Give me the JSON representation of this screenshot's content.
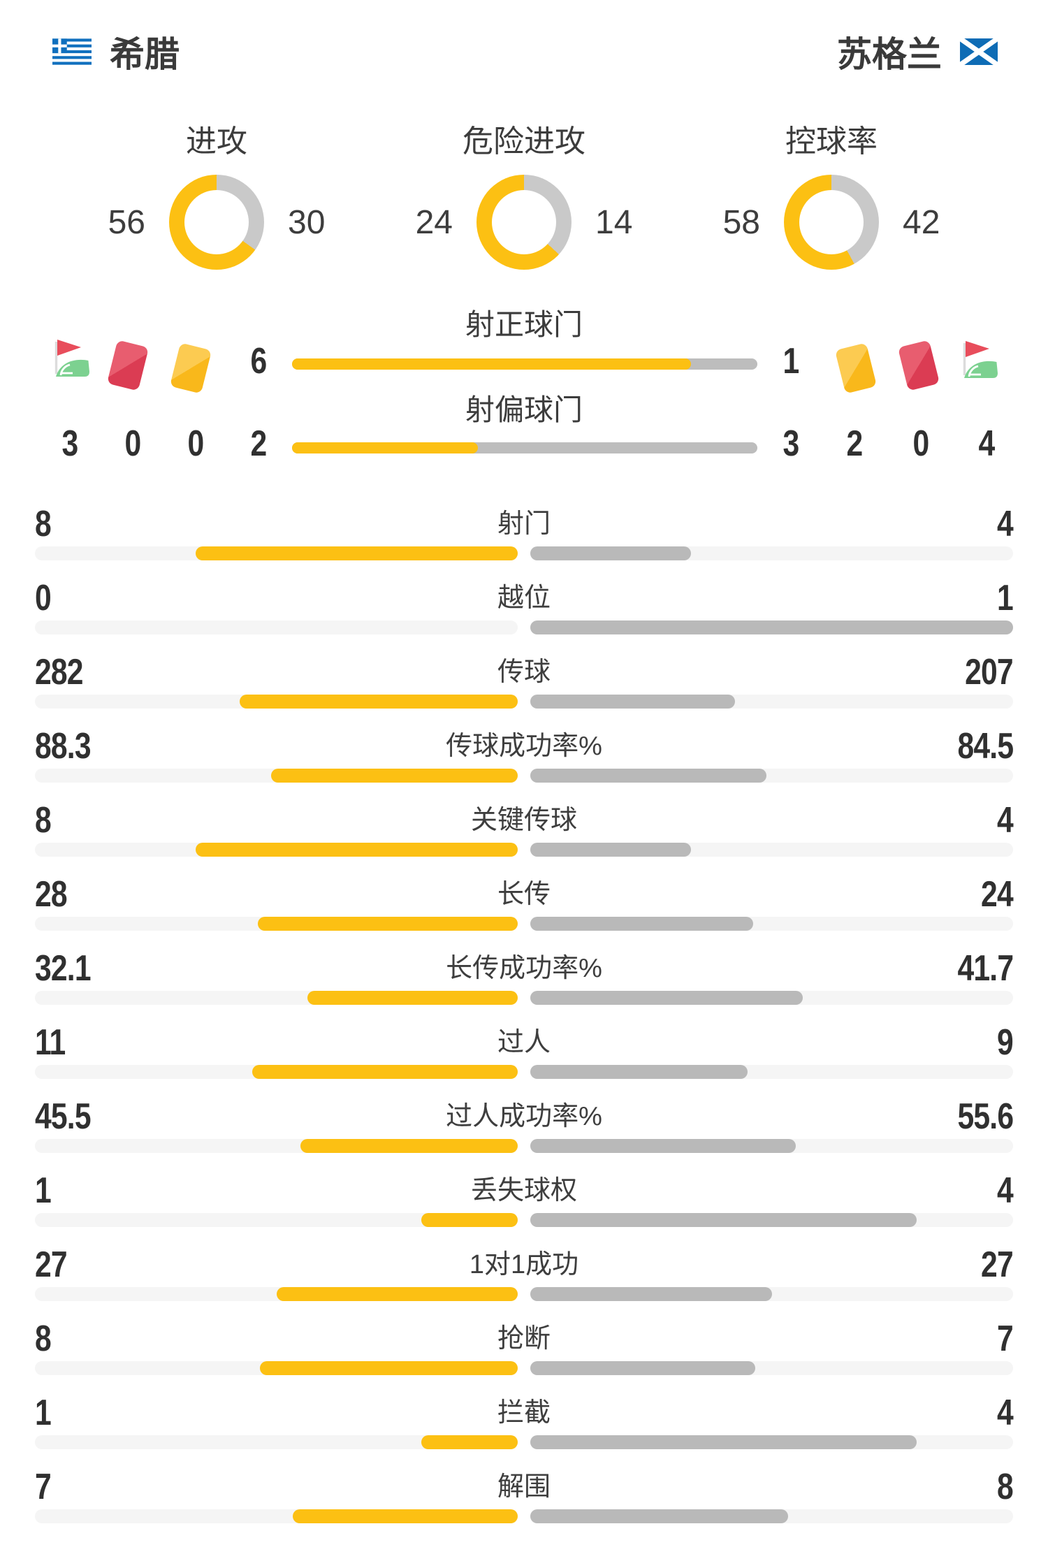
{
  "header": {
    "home_team": "希腊",
    "away_team": "苏格兰",
    "home_flag_icon": "greece-flag-icon",
    "away_flag_icon": "scotland-flag-icon"
  },
  "chart_data": {
    "type": "match-stats",
    "legend": {
      "home_color_meaning": "left team (希腊)",
      "away_color_meaning": "right team (苏格兰)"
    },
    "donuts": [
      {
        "label": "进攻",
        "home": 56,
        "away": 30
      },
      {
        "label": "危险进攻",
        "home": 24,
        "away": 14
      },
      {
        "label": "控球率",
        "home": 58,
        "away": 42
      }
    ],
    "shot_bars": [
      {
        "label": "射正球门",
        "home": 6,
        "away": 1
      },
      {
        "label": "射偏球门",
        "home": 2,
        "away": 3
      }
    ],
    "cards_corners": {
      "home": {
        "corners": 3,
        "red_cards": 0,
        "yellow_cards": 0
      },
      "away": {
        "yellow_cards": 2,
        "red_cards": 0,
        "corners": 4
      }
    },
    "stats": [
      {
        "label": "射门",
        "home": "8",
        "away": "4"
      },
      {
        "label": "越位",
        "home": "0",
        "away": "1"
      },
      {
        "label": "传球",
        "home": "282",
        "away": "207"
      },
      {
        "label": "传球成功率%",
        "home": "88.3",
        "away": "84.5"
      },
      {
        "label": "关键传球",
        "home": "8",
        "away": "4"
      },
      {
        "label": "长传",
        "home": "28",
        "away": "24"
      },
      {
        "label": "长传成功率%",
        "home": "32.1",
        "away": "41.7"
      },
      {
        "label": "过人",
        "home": "11",
        "away": "9"
      },
      {
        "label": "过人成功率%",
        "home": "45.5",
        "away": "55.6"
      },
      {
        "label": "丢失球权",
        "home": "1",
        "away": "4"
      },
      {
        "label": "1对1成功",
        "home": "27",
        "away": "27"
      },
      {
        "label": "抢断",
        "home": "8",
        "away": "7"
      },
      {
        "label": "拦截",
        "home": "1",
        "away": "4"
      },
      {
        "label": "解围",
        "home": "7",
        "away": "8"
      }
    ]
  },
  "colors": {
    "home_accent": "#fcc013",
    "away_bar": "#b9b9b9",
    "donut_rest": "#c9c9c9",
    "bar_track": "#f5f5f5",
    "text": "#383838",
    "greece_blue": "#1070be",
    "scotland_blue": "#0e6cb5",
    "corner_green": "#7cd190",
    "pennant_red": "#e84d5b",
    "card_red": "#db3c53",
    "card_yellow": "#f9b81b"
  },
  "icons": [
    "greece-flag-icon",
    "scotland-flag-icon",
    "corner-flag-icon",
    "red-card-icon",
    "yellow-card-icon"
  ]
}
